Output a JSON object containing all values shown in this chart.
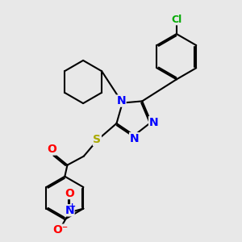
{
  "background_color": "#e8e8e8",
  "atom_colors": {
    "N": "#0000ff",
    "O": "#ff0000",
    "S": "#aaaa00",
    "Cl": "#00aa00",
    "C": "#000000"
  },
  "bond_color": "#000000",
  "bond_width": 1.5,
  "font_size": 10,
  "font_size_cl": 9
}
